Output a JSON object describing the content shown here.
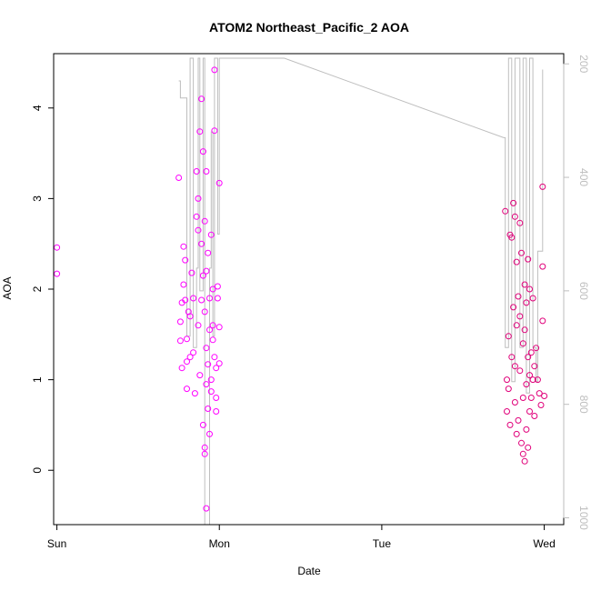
{
  "chart_data": {
    "type": "scatter",
    "title": "ATOM2 Northeast_Pacific_2 AOA",
    "xlabel": "Date",
    "ylabel": "AOA",
    "x_axis": {
      "type": "day-of-week",
      "ticks": [
        "Sun",
        "Mon",
        "Tue",
        "Wed"
      ],
      "tick_values": [
        0,
        1,
        2,
        3
      ],
      "range": [
        -0.02,
        3.12
      ]
    },
    "y_axis": {
      "range": [
        -0.6,
        4.6
      ],
      "ticks": [
        0,
        1,
        2,
        3,
        4
      ]
    },
    "y2_axis": {
      "range": [
        1012,
        182
      ],
      "ticks": [
        200,
        400,
        600,
        800,
        1000
      ],
      "reversed": true
    },
    "grid": false,
    "colors": {
      "points": "#ff00ff",
      "points_alt": "#e0007a",
      "line": "#bebebe",
      "axis": "#000000",
      "right_axis": "#bebebe"
    },
    "series": [
      {
        "values": [
          [
            0.0,
            2.46
          ],
          [
            0.0,
            2.17
          ],
          [
            0.75,
            3.23
          ],
          [
            0.76,
            1.43
          ],
          [
            0.76,
            1.64
          ],
          [
            0.77,
            1.13
          ],
          [
            0.77,
            1.85
          ],
          [
            0.78,
            2.05
          ],
          [
            0.78,
            2.47
          ],
          [
            0.79,
            2.32
          ],
          [
            0.79,
            1.88
          ],
          [
            0.8,
            1.45
          ],
          [
            0.8,
            1.2
          ],
          [
            0.8,
            0.9
          ],
          [
            0.81,
            1.75
          ],
          [
            0.82,
            1.25
          ],
          [
            0.82,
            1.7
          ],
          [
            0.83,
            2.18
          ],
          [
            0.84,
            1.9
          ],
          [
            0.84,
            1.3
          ],
          [
            0.85,
            0.85
          ],
          [
            0.86,
            3.3
          ],
          [
            0.86,
            2.8
          ],
          [
            0.87,
            1.6
          ],
          [
            0.87,
            3.0
          ],
          [
            0.87,
            2.65
          ],
          [
            0.88,
            1.05
          ],
          [
            0.88,
            3.74
          ],
          [
            0.89,
            4.1
          ],
          [
            0.89,
            2.5
          ],
          [
            0.89,
            1.88
          ],
          [
            0.9,
            3.52
          ],
          [
            0.9,
            2.15
          ],
          [
            0.9,
            0.5
          ],
          [
            0.91,
            2.75
          ],
          [
            0.91,
            1.75
          ],
          [
            0.91,
            0.25
          ],
          [
            0.91,
            0.18
          ],
          [
            0.92,
            1.35
          ],
          [
            0.92,
            0.95
          ],
          [
            0.92,
            2.2
          ],
          [
            0.92,
            3.3
          ],
          [
            0.93,
            2.4
          ],
          [
            0.93,
            1.17
          ],
          [
            0.93,
            0.68
          ],
          [
            0.94,
            1.55
          ],
          [
            0.94,
            1.9
          ],
          [
            0.94,
            0.4
          ],
          [
            0.95,
            0.87
          ],
          [
            0.95,
            1.0
          ],
          [
            0.95,
            2.6
          ],
          [
            0.96,
            1.6
          ],
          [
            0.96,
            1.44
          ],
          [
            0.96,
            2.0
          ],
          [
            0.97,
            3.75
          ],
          [
            0.97,
            4.42
          ],
          [
            0.97,
            1.25
          ],
          [
            0.98,
            0.8
          ],
          [
            0.98,
            0.65
          ],
          [
            0.98,
            1.13
          ],
          [
            0.99,
            2.03
          ],
          [
            0.99,
            1.9
          ],
          [
            1.0,
            3.17
          ],
          [
            1.0,
            1.58
          ],
          [
            1.0,
            1.18
          ],
          [
            0.92,
            -0.42
          ],
          [
            2.76,
            2.86
          ],
          [
            2.77,
            1.0
          ],
          [
            2.77,
            0.65
          ],
          [
            2.78,
            1.48
          ],
          [
            2.78,
            0.9
          ],
          [
            2.79,
            2.6
          ],
          [
            2.79,
            0.5
          ],
          [
            2.8,
            2.57
          ],
          [
            2.8,
            1.25
          ],
          [
            2.81,
            2.95
          ],
          [
            2.81,
            1.8
          ],
          [
            2.82,
            2.8
          ],
          [
            2.82,
            1.15
          ],
          [
            2.82,
            0.75
          ],
          [
            2.83,
            2.3
          ],
          [
            2.83,
            1.6
          ],
          [
            2.83,
            0.4
          ],
          [
            2.84,
            1.92
          ],
          [
            2.84,
            0.55
          ],
          [
            2.85,
            2.73
          ],
          [
            2.85,
            1.7
          ],
          [
            2.85,
            1.1
          ],
          [
            2.86,
            2.4
          ],
          [
            2.86,
            0.3
          ],
          [
            2.87,
            1.4
          ],
          [
            2.87,
            0.8
          ],
          [
            2.87,
            0.18
          ],
          [
            2.88,
            2.05
          ],
          [
            2.88,
            1.55
          ],
          [
            2.88,
            0.1
          ],
          [
            2.89,
            1.85
          ],
          [
            2.89,
            0.95
          ],
          [
            2.89,
            0.45
          ],
          [
            2.9,
            2.33
          ],
          [
            2.9,
            1.25
          ],
          [
            2.9,
            0.25
          ],
          [
            2.91,
            2.0
          ],
          [
            2.91,
            1.05
          ],
          [
            2.91,
            0.65
          ],
          [
            2.92,
            1.3
          ],
          [
            2.92,
            0.8
          ],
          [
            2.93,
            1.9
          ],
          [
            2.93,
            1.0
          ],
          [
            2.94,
            1.15
          ],
          [
            2.94,
            0.6
          ],
          [
            2.95,
            1.35
          ],
          [
            2.96,
            1.0
          ],
          [
            2.97,
            0.85
          ],
          [
            2.98,
            0.72
          ],
          [
            2.99,
            3.13
          ],
          [
            2.99,
            2.25
          ],
          [
            2.99,
            1.65
          ],
          [
            3.0,
            0.82
          ]
        ]
      }
    ]
  }
}
